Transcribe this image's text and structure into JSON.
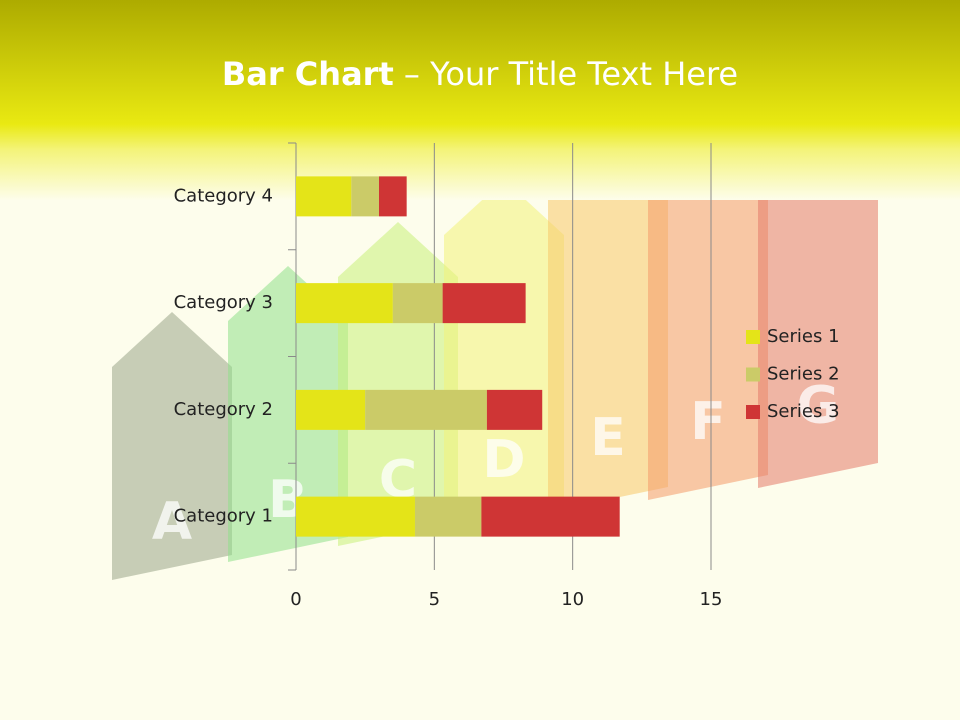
{
  "title_bold": "Bar Chart",
  "title_rest": " – Your Title Text Here",
  "background_letters": [
    "A",
    "B",
    "C",
    "D",
    "E",
    "F",
    "G"
  ],
  "chart_data": {
    "type": "stacked-bar-horizontal",
    "categories": [
      "Category 1",
      "Category 2",
      "Category 3",
      "Category 4"
    ],
    "series": [
      {
        "name": "Series 1",
        "color": "#e4e418",
        "values": [
          4.3,
          2.5,
          3.5,
          2
        ]
      },
      {
        "name": "Series 2",
        "color": "#cbcb68",
        "values": [
          2.4,
          4.4,
          1.8,
          1
        ]
      },
      {
        "name": "Series 3",
        "color": "#cf3535",
        "values": [
          5,
          2,
          3,
          1
        ]
      }
    ],
    "xlim": [
      0,
      15
    ],
    "xticks": [
      0,
      5,
      10,
      15
    ],
    "grid": true,
    "legend": "right"
  }
}
